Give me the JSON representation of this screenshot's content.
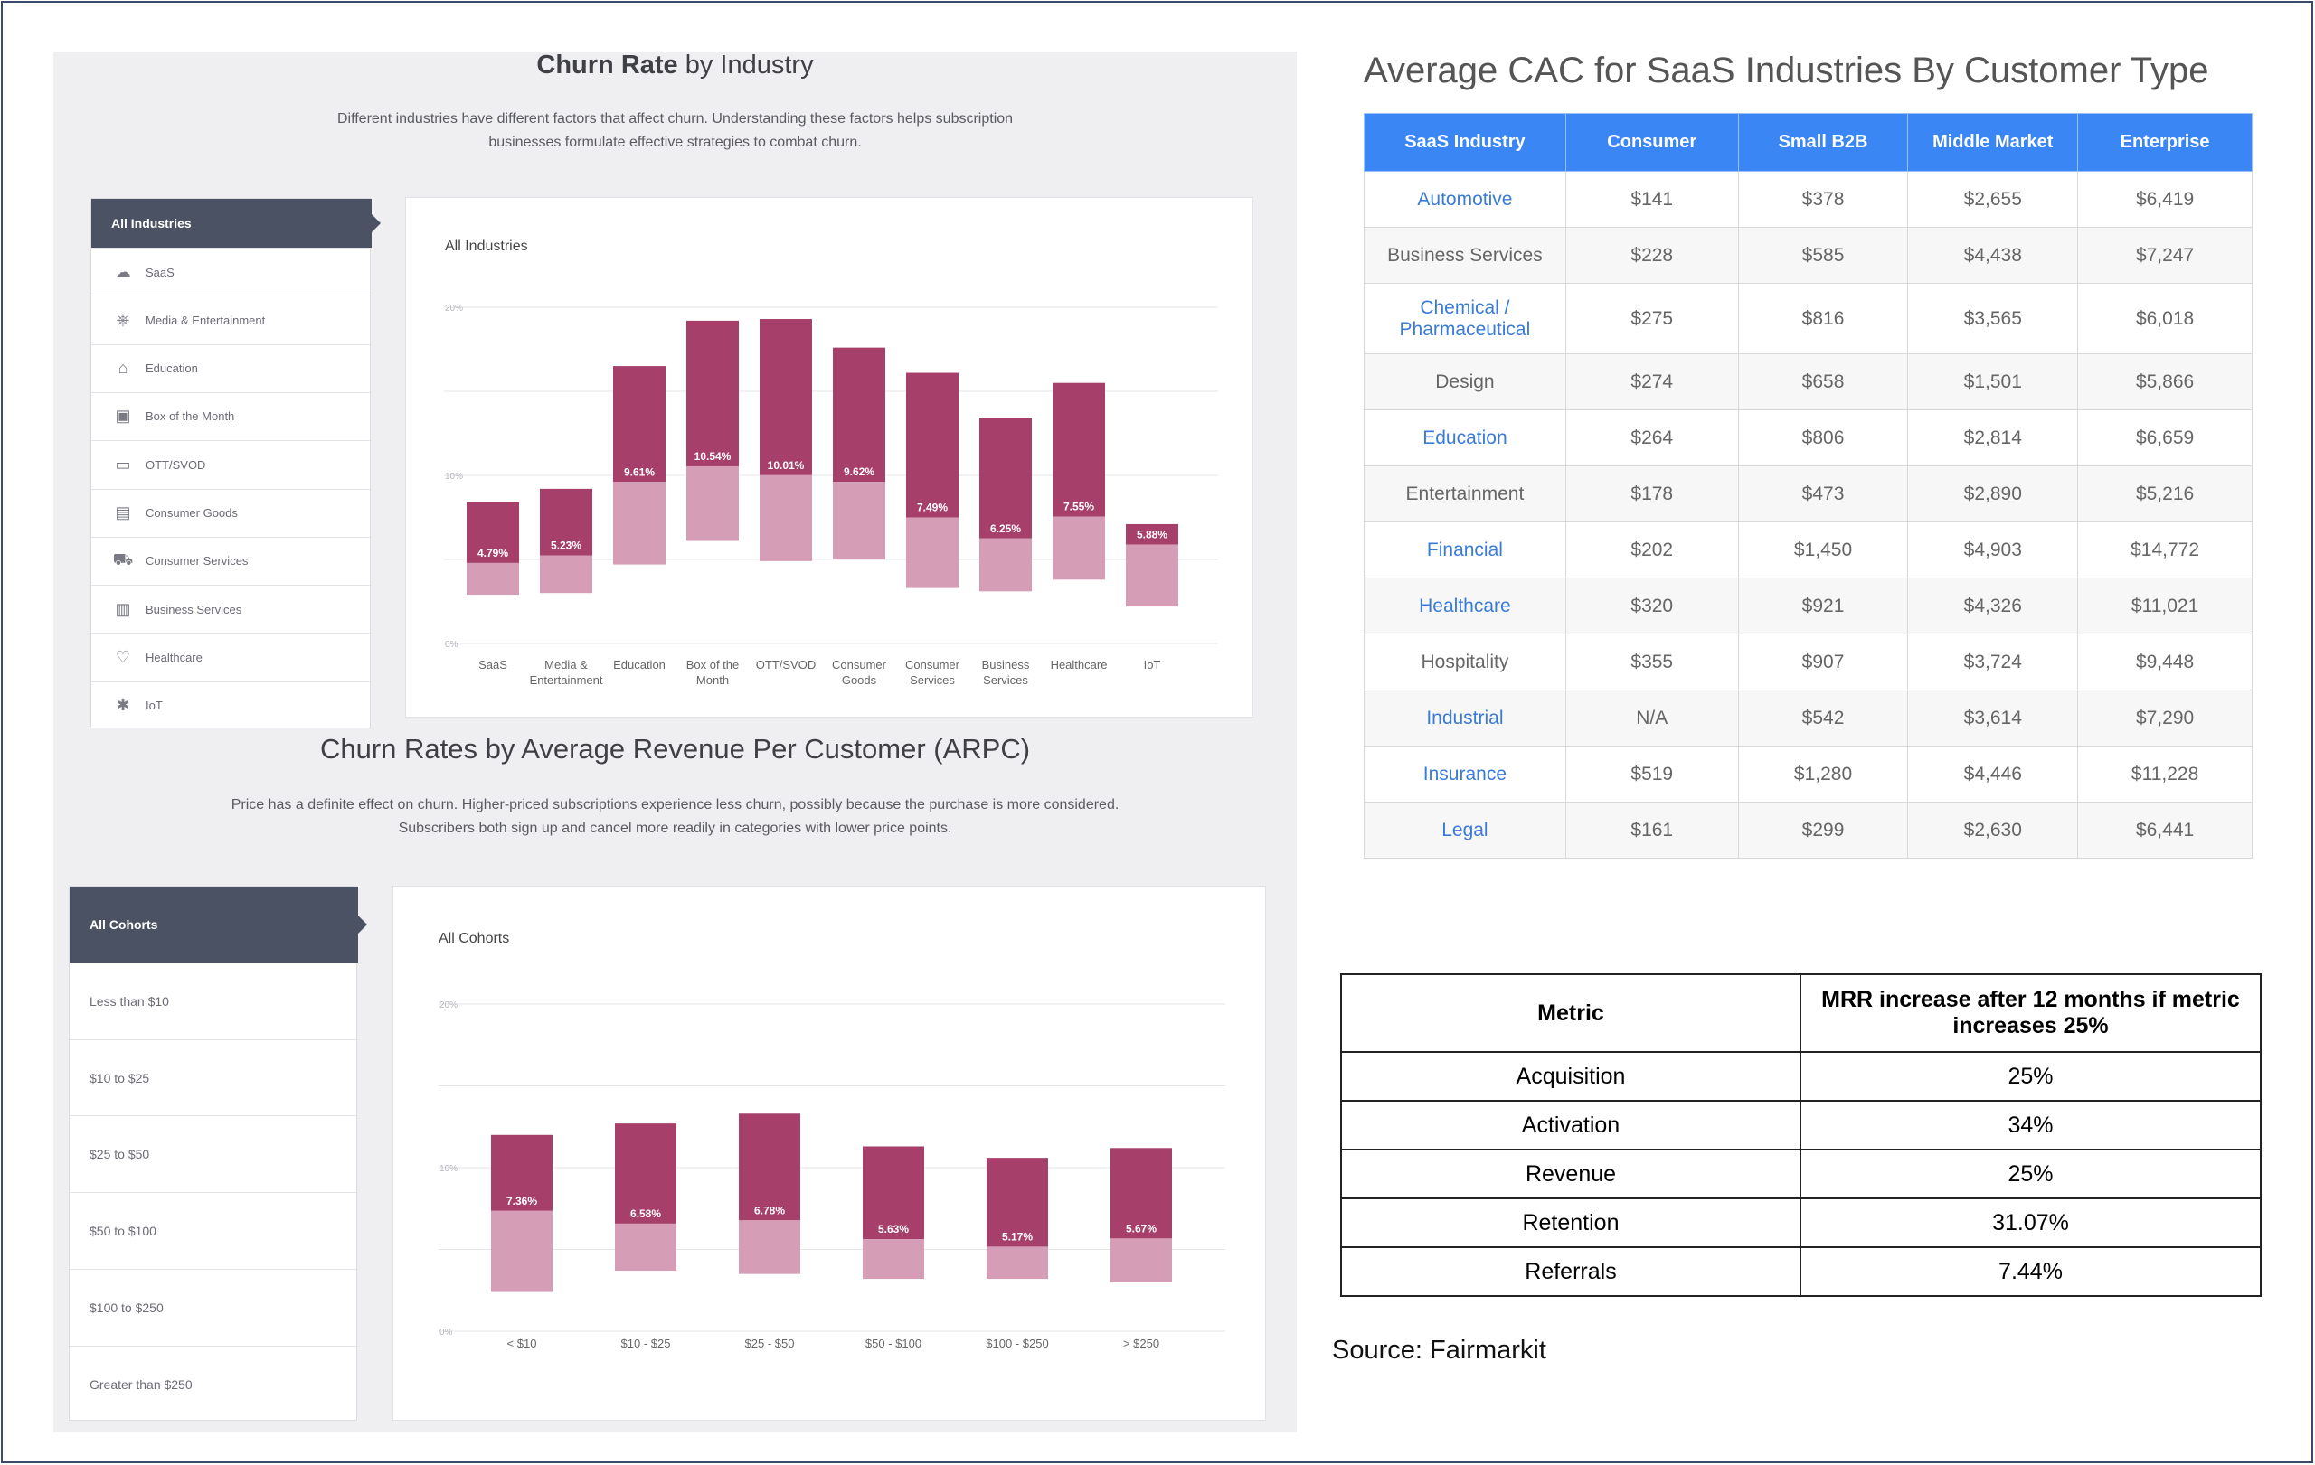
{
  "industry_section": {
    "title_bold": "Churn Rate",
    "title_rest": " by Industry",
    "desc_line1": "Different industries have different factors that affect churn. Understanding these factors helps subscription",
    "desc_line2": "businesses formulate effective strategies to combat churn.",
    "menu_head": "All Industries",
    "menu_items": [
      {
        "label": "SaaS",
        "icon": "cloud-icon"
      },
      {
        "label": "Media & Entertainment",
        "icon": "film-camera-icon"
      },
      {
        "label": "Education",
        "icon": "graduation-cap-icon"
      },
      {
        "label": "Box of the Month",
        "icon": "box-icon"
      },
      {
        "label": "OTT/SVOD",
        "icon": "tv-icon"
      },
      {
        "label": "Consumer Goods",
        "icon": "shopping-bag-icon"
      },
      {
        "label": "Consumer Services",
        "icon": "delivery-icon"
      },
      {
        "label": "Business Services",
        "icon": "building-icon"
      },
      {
        "label": "Healthcare",
        "icon": "heart-icon"
      },
      {
        "label": "IoT",
        "icon": "network-icon"
      }
    ],
    "card_title": "All Industries"
  },
  "arpc_section": {
    "title": "Churn Rates by Average Revenue Per Customer (ARPC)",
    "desc_line1": "Price has a definite effect on churn. Higher-priced subscriptions experience less churn, possibly because the purchase is more considered.",
    "desc_line2": "Subscribers both sign up and cancel more readily in categories with lower price points.",
    "menu_head": "All Cohorts",
    "menu_items": [
      "Less than $10",
      "$10 to $25",
      "$25 to $50",
      "$50 to $100",
      "$100 to $250",
      "Greater than $250"
    ],
    "card_title": "All Cohorts"
  },
  "chart_data": [
    {
      "type": "bar",
      "title": "All Industries",
      "categories": [
        "SaaS",
        "Media & Entertainment",
        "Education",
        "Box of the Month",
        "OTT/SVOD",
        "Consumer Goods",
        "Consumer Services",
        "Business Services",
        "Healthcare",
        "IoT"
      ],
      "category_lines": [
        [
          "SaaS"
        ],
        [
          "Media &",
          "Entertainment"
        ],
        [
          "Education"
        ],
        [
          "Box of the",
          "Month"
        ],
        [
          "OTT/SVOD"
        ],
        [
          "Consumer",
          "Goods"
        ],
        [
          "Consumer",
          "Services"
        ],
        [
          "Business",
          "Services"
        ],
        [
          "Healthcare"
        ],
        [
          "IoT"
        ]
      ],
      "series": [
        {
          "values": [
            4.79,
            5.23,
            9.61,
            10.54,
            10.01,
            9.62,
            7.49,
            6.25,
            7.55,
            5.88
          ]
        }
      ],
      "range_low": [
        2.9,
        3.0,
        4.7,
        6.1,
        4.9,
        5.0,
        3.3,
        3.1,
        3.8,
        2.2
      ],
      "range_high": [
        8.4,
        9.2,
        16.5,
        19.2,
        19.3,
        17.6,
        16.1,
        13.4,
        15.5,
        7.1
      ],
      "data_labels": [
        "4.79%",
        "5.23%",
        "9.61%",
        "10.54%",
        "10.01%",
        "9.62%",
        "7.49%",
        "6.25%",
        "7.55%",
        "5.88%"
      ],
      "y_ticks": [
        "0%",
        "10%",
        "20%"
      ],
      "ylim": [
        0,
        20
      ],
      "grid": true,
      "colors": {
        "upper": "#a63f69",
        "lower": "#d59db6"
      }
    },
    {
      "type": "bar",
      "title": "All Cohorts",
      "categories": [
        "< $10",
        "$10 - $25",
        "$25 - $50",
        "$50 - $100",
        "$100 - $250",
        "> $250"
      ],
      "series": [
        {
          "values": [
            7.36,
            6.58,
            6.78,
            5.63,
            5.17,
            5.67
          ]
        }
      ],
      "range_low": [
        2.4,
        3.7,
        3.5,
        3.2,
        3.2,
        3.0
      ],
      "range_high": [
        12.0,
        12.7,
        13.3,
        11.3,
        10.6,
        11.2
      ],
      "data_labels": [
        "7.36%",
        "6.58%",
        "6.78%",
        "5.63%",
        "5.17%",
        "5.67%"
      ],
      "y_ticks": [
        "0%",
        "10%",
        "20%"
      ],
      "ylim": [
        0,
        20
      ],
      "grid": true,
      "colors": {
        "upper": "#a63f69",
        "lower": "#d59db6"
      }
    }
  ],
  "cac": {
    "title": "Average CAC for SaaS Industries By Customer Type",
    "headers": [
      "SaaS Industry",
      "Consumer",
      "Small B2B",
      "Middle Market",
      "Enterprise"
    ],
    "rows": [
      {
        "industry": "Automotive",
        "link": true,
        "values": [
          "$141",
          "$378",
          "$2,655",
          "$6,419"
        ]
      },
      {
        "industry": "Business Services",
        "link": false,
        "values": [
          "$228",
          "$585",
          "$4,438",
          "$7,247"
        ]
      },
      {
        "industry_line1": "Chemical /",
        "industry_line2": "Pharmaceutical",
        "link": true,
        "values": [
          "$275",
          "$816",
          "$3,565",
          "$6,018"
        ]
      },
      {
        "industry": "Design",
        "link": false,
        "values": [
          "$274",
          "$658",
          "$1,501",
          "$5,866"
        ]
      },
      {
        "industry": "Education",
        "link": true,
        "values": [
          "$264",
          "$806",
          "$2,814",
          "$6,659"
        ]
      },
      {
        "industry": "Entertainment",
        "link": false,
        "values": [
          "$178",
          "$473",
          "$2,890",
          "$5,216"
        ]
      },
      {
        "industry": "Financial",
        "link": true,
        "values": [
          "$202",
          "$1,450",
          "$4,903",
          "$14,772"
        ]
      },
      {
        "industry": "Healthcare",
        "link": true,
        "values": [
          "$320",
          "$921",
          "$4,326",
          "$11,021"
        ]
      },
      {
        "industry": "Hospitality",
        "link": false,
        "values": [
          "$355",
          "$907",
          "$3,724",
          "$9,448"
        ]
      },
      {
        "industry": "Industrial",
        "link": true,
        "values": [
          "N/A",
          "$542",
          "$3,614",
          "$7,290"
        ]
      },
      {
        "industry": "Insurance",
        "link": true,
        "values": [
          "$519",
          "$1,280",
          "$4,446",
          "$11,228"
        ]
      },
      {
        "industry": "Legal",
        "link": true,
        "values": [
          "$161",
          "$299",
          "$2,630",
          "$6,441"
        ]
      }
    ]
  },
  "mrr": {
    "header_metric": "Metric",
    "header_value": "MRR increase after 12 months if metric increases 25%",
    "rows": [
      {
        "metric": "Acquisition",
        "value": "25%"
      },
      {
        "metric": "Activation",
        "value": "34%"
      },
      {
        "metric": "Revenue",
        "value": "25%"
      },
      {
        "metric": "Retention",
        "value": "31.07%"
      },
      {
        "metric": "Referrals",
        "value": "7.44%"
      }
    ]
  },
  "source": "Source: Fairmarkit"
}
